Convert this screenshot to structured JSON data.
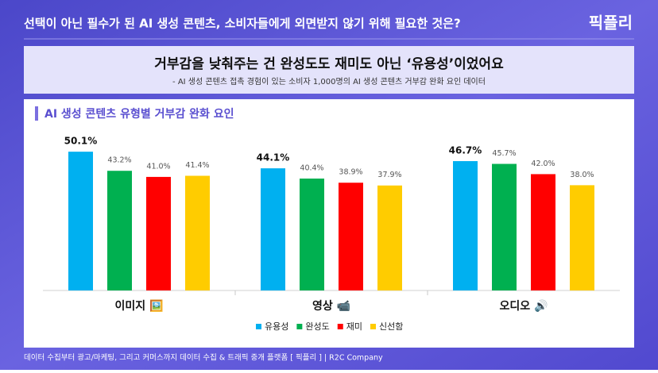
{
  "header": {
    "title": "선택이 아닌 필수가 된 AI 생성 콘텐츠, 소비자들에게 외면받지 않기 위해 필요한 것은?",
    "logo": "픽플리"
  },
  "banner": {
    "headline": "거부감을 낮춰주는 건 완성도도 재미도 아닌 ‘유용성’이었어요",
    "subtitle": "- AI 생성 콘텐츠 접촉 경험이 있는 소비자 1,000명의 AI 생성 콘텐츠 거부감 완화 요인 데이터"
  },
  "chart_data": {
    "type": "bar",
    "title": "AI 생성 콘텐츠 유형별 거부감 완화 요인",
    "categories": [
      "이미지 🖼️",
      "영상 📹",
      "오디오 🔊"
    ],
    "series": [
      {
        "name": "유용성",
        "color": "#00b0f0",
        "values": [
          50.1,
          44.1,
          46.7
        ],
        "value_labels": [
          "50.1%",
          "44.1%",
          "46.7%"
        ]
      },
      {
        "name": "완성도",
        "color": "#00b050",
        "values": [
          43.2,
          40.4,
          45.7
        ],
        "value_labels": [
          "43.2%",
          "40.4%",
          "45.7%"
        ]
      },
      {
        "name": "재미",
        "color": "#ff0000",
        "values": [
          41.0,
          38.9,
          42.0
        ],
        "value_labels": [
          "41.0%",
          "38.9%",
          "42.0%"
        ]
      },
      {
        "name": "신선함",
        "color": "#ffcc00",
        "values": [
          41.4,
          37.9,
          38.0
        ],
        "value_labels": [
          "41.4%",
          "37.9%",
          "38.0%"
        ]
      }
    ],
    "legend": "bottom"
  },
  "footer": "데이터 수집부터 광고/마케팅, 그리고 커머스까지 데이터 수집 & 트래픽 중개 플랫폼 [ 픽플리 ] | R2C Company"
}
